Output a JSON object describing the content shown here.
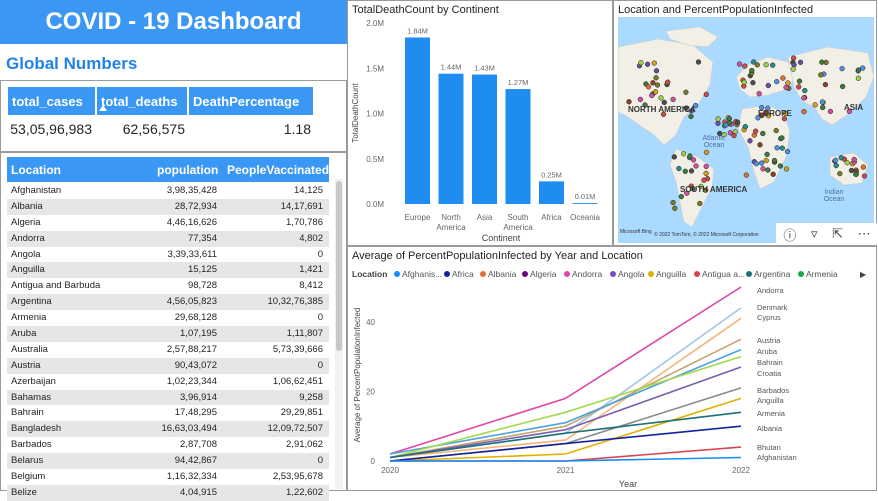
{
  "dashboard": {
    "title": "COVID - 19 Dashboard",
    "section_title": "Global Numbers"
  },
  "stats": {
    "headers": [
      "total_cases",
      "total_deaths",
      "DeathPercentage"
    ],
    "values": [
      "53,05,96,983",
      "62,56,575",
      "1.18"
    ]
  },
  "table": {
    "columns": [
      "Location",
      "population",
      "PeopleVaccinated"
    ],
    "rows": [
      [
        "Afghanistan",
        "3,98,35,428",
        "14,125"
      ],
      [
        "Albania",
        "28,72,934",
        "14,17,691"
      ],
      [
        "Algeria",
        "4,46,16,626",
        "1,70,786"
      ],
      [
        "Andorra",
        "77,354",
        "4,802"
      ],
      [
        "Angola",
        "3,39,33,611",
        "0"
      ],
      [
        "Anguilla",
        "15,125",
        "1,421"
      ],
      [
        "Antigua and Barbuda",
        "98,728",
        "8,412"
      ],
      [
        "Argentina",
        "4,56,05,823",
        "10,32,76,385"
      ],
      [
        "Armenia",
        "29,68,128",
        "0"
      ],
      [
        "Aruba",
        "1,07,195",
        "1,11,807"
      ],
      [
        "Australia",
        "2,57,88,217",
        "5,73,39,666"
      ],
      [
        "Austria",
        "90,43,072",
        "0"
      ],
      [
        "Azerbaijan",
        "1,02,23,344",
        "1,06,62,451"
      ],
      [
        "Bahamas",
        "3,96,914",
        "9,258"
      ],
      [
        "Bahrain",
        "17,48,295",
        "29,29,851"
      ],
      [
        "Bangladesh",
        "16,63,03,494",
        "12,09,72,507"
      ],
      [
        "Barbados",
        "2,87,708",
        "2,91,062"
      ],
      [
        "Belarus",
        "94,42,867",
        "0"
      ],
      [
        "Belgium",
        "1,16,32,334",
        "2,53,95,678"
      ],
      [
        "Belize",
        "4,04,915",
        "1,22,602"
      ]
    ]
  },
  "bar_panel": {
    "title": "TotalDeathCount by Continent"
  },
  "map_panel": {
    "title": "Location and PercentPopulationInfected",
    "labels": [
      "NORTH AMERICA",
      "EUROPE",
      "ASIA",
      "Atlantic Ocean",
      "SOUTH AMERICA",
      "Indian Ocean"
    ],
    "credit": "© 2022 TomTom, © 2022 Microsoft Corporation",
    "bing": "Microsoft Bing"
  },
  "line_panel": {
    "title": "Average of PercentPopulationInfected by Year and Location",
    "legend_title": "Location",
    "legend": [
      "Afghanis...",
      "Africa",
      "Albania",
      "Algeria",
      "Andorra",
      "Angola",
      "Anguilla",
      "Antigua a...",
      "Argentina",
      "Armenia"
    ],
    "end_labels": [
      "Andorra",
      "Denmark",
      "Cyprus",
      "Austria",
      "Aruba",
      "Bahrain",
      "Croatia",
      "Barbados",
      "Anguilla",
      "Armenia",
      "Albania",
      "Bhutan",
      "Afghanistan"
    ]
  },
  "chart_data": [
    {
      "type": "bar",
      "title": "TotalDeathCount by Continent",
      "xlabel": "Continent",
      "ylabel": "TotalDeathCount",
      "categories": [
        "Europe",
        "North America",
        "Asia",
        "South America",
        "Africa",
        "Oceania"
      ],
      "values": [
        1.84,
        1.44,
        1.43,
        1.27,
        0.25,
        0.01
      ],
      "data_labels": [
        "1.84M",
        "1.44M",
        "1.43M",
        "1.27M",
        "0.25M",
        "0.01M"
      ],
      "unit": "M",
      "ylim": [
        0,
        2.0
      ],
      "yticks": [
        "0.0M",
        "0.5M",
        "1.0M",
        "1.5M",
        "2.0M"
      ],
      "color": "#1f8cf2"
    },
    {
      "type": "line",
      "title": "Average of PercentPopulationInfected by Year and Location",
      "xlabel": "Year",
      "ylabel": "Average of PercentPopulationInfected",
      "x": [
        2020,
        2021,
        2022
      ],
      "ylim": [
        0,
        50
      ],
      "yticks": [
        0,
        20,
        40
      ],
      "series": [
        {
          "name": "Andorra",
          "values": [
            2,
            18,
            50
          ],
          "color": "#e044a7"
        },
        {
          "name": "Denmark",
          "values": [
            1,
            8,
            44
          ],
          "color": "#a0c4ea"
        },
        {
          "name": "Cyprus",
          "values": [
            1,
            6,
            41
          ],
          "color": "#f5b57a"
        },
        {
          "name": "Austria",
          "values": [
            1,
            10,
            35
          ],
          "color": "#c9a26b"
        },
        {
          "name": "Aruba",
          "values": [
            2,
            11,
            32
          ],
          "color": "#4aa3df"
        },
        {
          "name": "Bahrain",
          "values": [
            1,
            14,
            30
          ],
          "color": "#a3d94a"
        },
        {
          "name": "Croatia",
          "values": [
            1,
            9,
            27
          ],
          "color": "#7a5fb0"
        },
        {
          "name": "Barbados",
          "values": [
            0,
            5,
            21
          ],
          "color": "#8a8a8a"
        },
        {
          "name": "Anguilla",
          "values": [
            0,
            2,
            18
          ],
          "color": "#e3b000"
        },
        {
          "name": "Armenia",
          "values": [
            1,
            8,
            14
          ],
          "color": "#197278"
        },
        {
          "name": "Albania",
          "values": [
            0,
            5,
            10
          ],
          "color": "#12239e"
        },
        {
          "name": "Bhutan",
          "values": [
            0,
            0,
            4
          ],
          "color": "#d64550"
        },
        {
          "name": "Afghanistan",
          "values": [
            0,
            0,
            1
          ],
          "color": "#118dff"
        }
      ]
    }
  ]
}
